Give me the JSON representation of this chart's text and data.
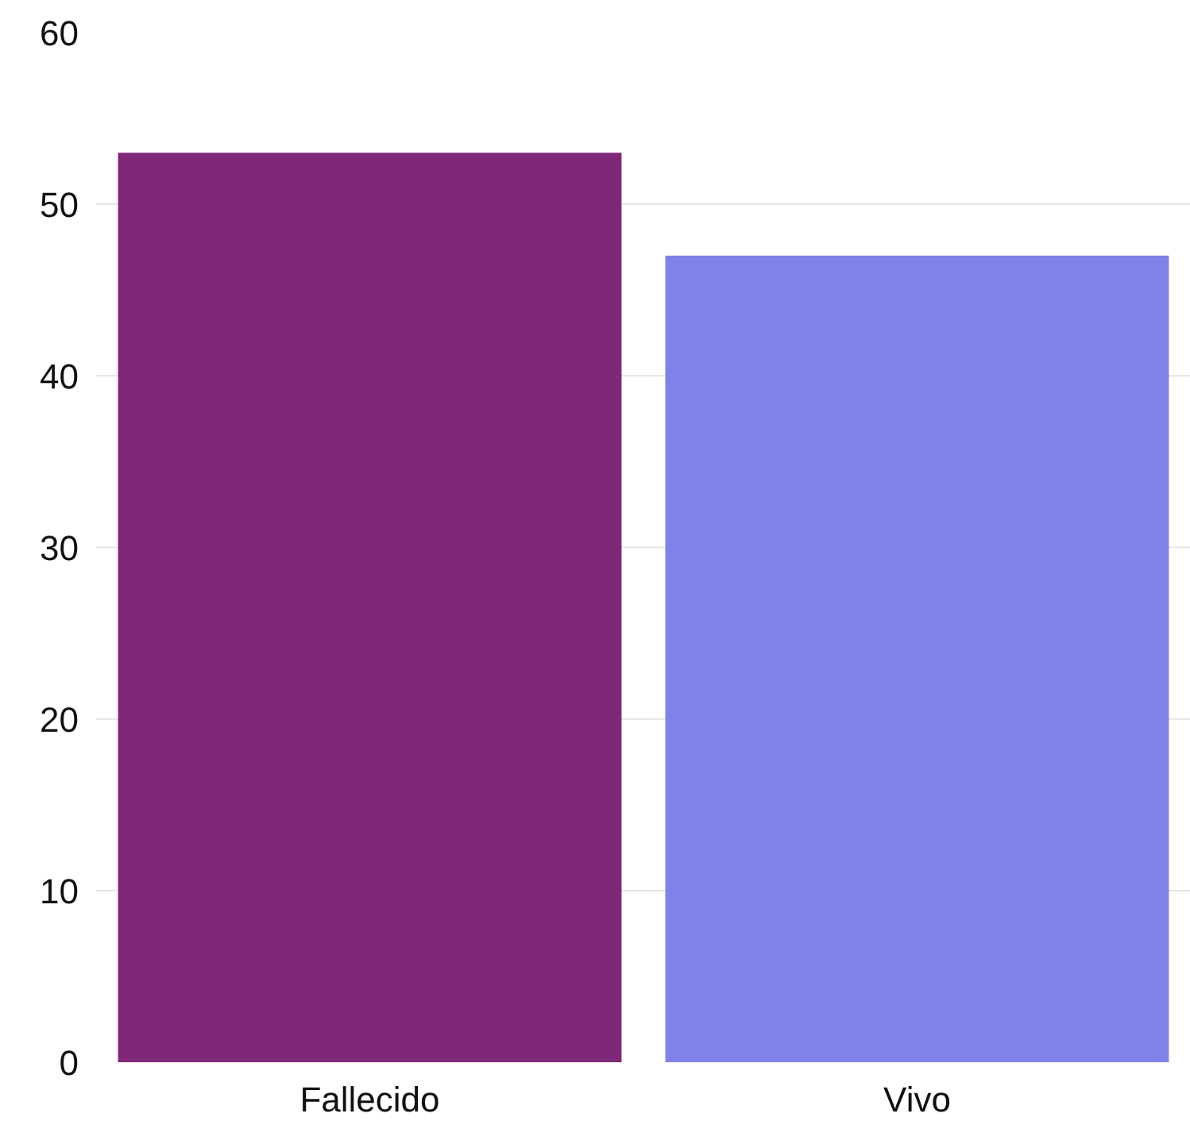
{
  "chart_data": {
    "type": "bar",
    "categories": [
      "Fallecido",
      "Vivo"
    ],
    "values": [
      53,
      47
    ],
    "colors": [
      "#7f2878",
      "#7f82e8"
    ],
    "ylim": [
      0,
      60
    ],
    "yticks": [
      0,
      10,
      20,
      30,
      40,
      50,
      60
    ],
    "grid": "y"
  }
}
